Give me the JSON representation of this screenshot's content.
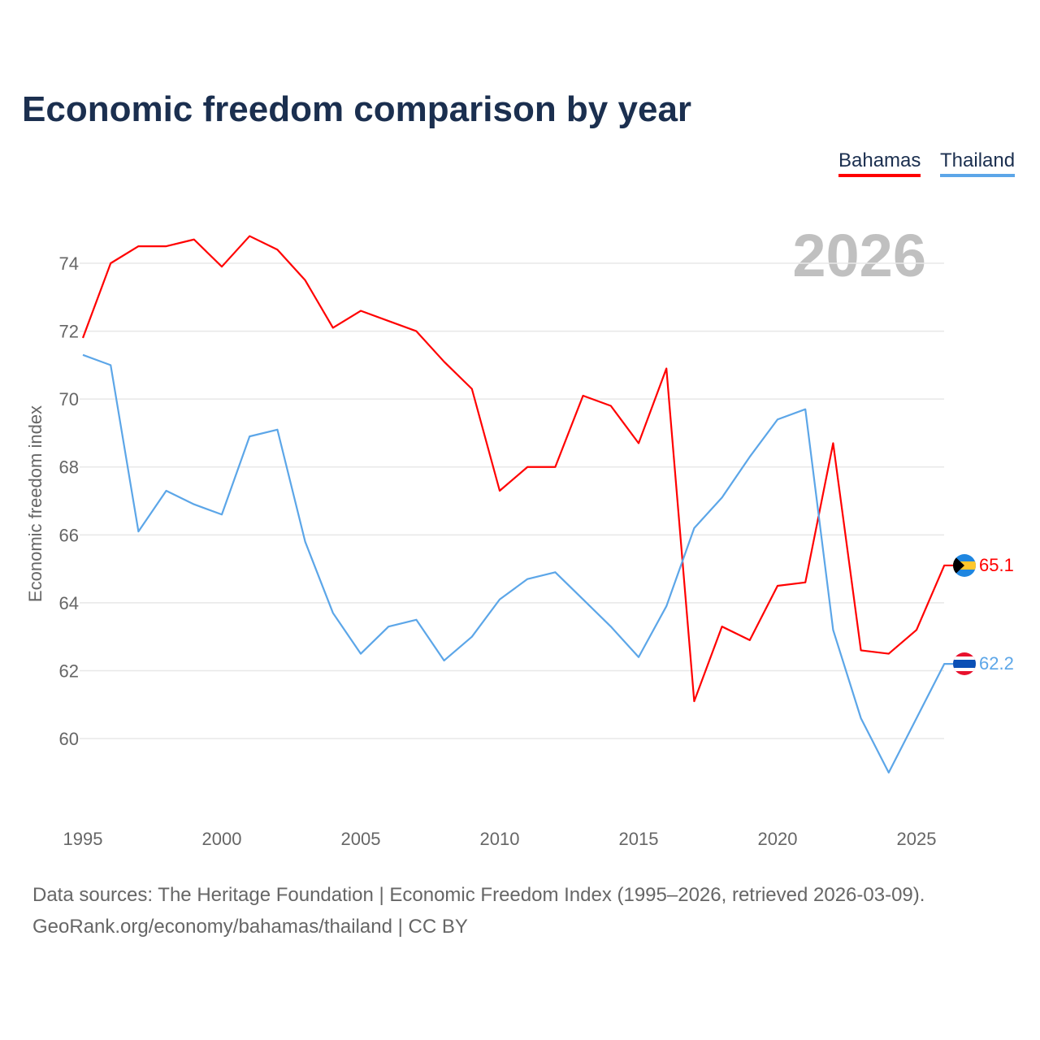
{
  "chart_data": {
    "type": "line",
    "title": "Economic freedom comparison by year",
    "ylabel": "Economic freedom index",
    "xlabel": "",
    "year_watermark": "2026",
    "ylim": [
      58.6,
      75.5
    ],
    "xlim": [
      1995,
      2026
    ],
    "yticks": [
      60,
      62,
      64,
      66,
      68,
      70,
      72,
      74
    ],
    "xticks": [
      1995,
      2000,
      2005,
      2010,
      2015,
      2020,
      2025
    ],
    "grid": true,
    "legend_position": "top-right",
    "x": [
      1995,
      1996,
      1997,
      1998,
      1999,
      2000,
      2001,
      2002,
      2003,
      2004,
      2005,
      2006,
      2007,
      2008,
      2009,
      2010,
      2011,
      2012,
      2013,
      2014,
      2015,
      2016,
      2017,
      2018,
      2019,
      2020,
      2021,
      2022,
      2023,
      2024,
      2025,
      2026
    ],
    "series": [
      {
        "name": "Bahamas",
        "color": "#ff0000",
        "end_label": "65.1",
        "values": [
          71.8,
          74.0,
          74.5,
          74.5,
          74.7,
          73.9,
          74.8,
          74.4,
          73.5,
          72.1,
          72.6,
          72.3,
          72.0,
          71.1,
          70.3,
          67.3,
          68.0,
          68.0,
          70.1,
          69.8,
          68.7,
          70.9,
          61.1,
          63.3,
          62.9,
          64.5,
          64.6,
          68.7,
          62.6,
          62.5,
          63.2,
          65.1
        ]
      },
      {
        "name": "Thailand",
        "color": "#5ca6e8",
        "end_label": "62.2",
        "values": [
          71.3,
          71.0,
          66.1,
          67.3,
          66.9,
          66.6,
          68.9,
          69.1,
          65.8,
          63.7,
          62.5,
          63.3,
          63.5,
          62.3,
          63.0,
          64.1,
          64.7,
          64.9,
          64.1,
          63.3,
          62.4,
          63.9,
          66.2,
          67.1,
          68.3,
          69.4,
          69.7,
          63.2,
          60.6,
          59.0,
          60.6,
          62.2
        ]
      }
    ]
  },
  "footer": {
    "line1": "Data sources: The Heritage Foundation | Economic Freedom Index (1995–2026, retrieved 2026-03-09).",
    "line2": "GeoRank.org/economy/bahamas/thailand | CC BY"
  }
}
